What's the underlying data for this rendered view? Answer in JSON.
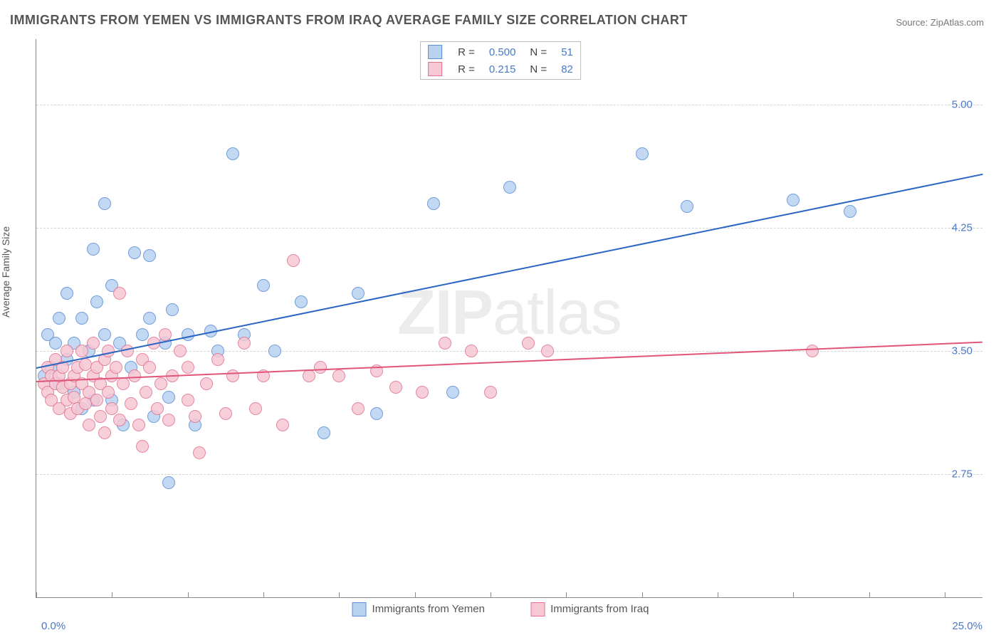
{
  "title": "IMMIGRANTS FROM YEMEN VS IMMIGRANTS FROM IRAQ AVERAGE FAMILY SIZE CORRELATION CHART",
  "source_prefix": "Source: ",
  "source": "ZipAtlas.com",
  "watermark_bold": "ZIP",
  "watermark_thin": "atlas",
  "chart": {
    "type": "scatter",
    "ylabel": "Average Family Size",
    "background_color": "#ffffff",
    "grid_color": "#d5d5d5",
    "axis_color": "#888888",
    "ytick_label_color": "#4a7ac7",
    "xlim": [
      0.0,
      25.0
    ],
    "ylim": [
      2.0,
      5.4
    ],
    "yticks": [
      2.75,
      3.5,
      4.25,
      5.0
    ],
    "xticks": [
      0.0,
      2.0,
      4.0,
      6.0,
      8.0,
      10.0,
      12.0,
      14.0,
      16.0,
      18.0,
      20.0,
      22.0,
      24.0
    ],
    "xtick_labels_shown": {
      "left": "0.0%",
      "right": "25.0%"
    },
    "point_radius": 9,
    "series": [
      {
        "id": "yemen",
        "label": "Immigrants from Yemen",
        "color_fill": "#b9d2f0",
        "color_stroke": "#5a8dd6",
        "trend_color": "#2b66c4",
        "trend_start": [
          0.0,
          3.4
        ],
        "trend_end": [
          25.0,
          4.58
        ],
        "legend_R": "0.500",
        "legend_N": "51",
        "points": [
          [
            0.2,
            3.35
          ],
          [
            0.3,
            3.6
          ],
          [
            0.4,
            3.4
          ],
          [
            0.5,
            3.55
          ],
          [
            0.6,
            3.3
          ],
          [
            0.6,
            3.7
          ],
          [
            0.8,
            3.45
          ],
          [
            0.8,
            3.85
          ],
          [
            1.0,
            3.25
          ],
          [
            1.0,
            3.55
          ],
          [
            1.2,
            3.15
          ],
          [
            1.2,
            3.7
          ],
          [
            1.4,
            3.5
          ],
          [
            1.5,
            4.12
          ],
          [
            1.5,
            3.2
          ],
          [
            1.6,
            3.8
          ],
          [
            1.8,
            3.6
          ],
          [
            1.8,
            4.4
          ],
          [
            2.0,
            3.9
          ],
          [
            2.0,
            3.2
          ],
          [
            2.2,
            3.55
          ],
          [
            2.3,
            3.05
          ],
          [
            2.5,
            3.4
          ],
          [
            2.6,
            4.1
          ],
          [
            2.8,
            3.6
          ],
          [
            3.0,
            4.08
          ],
          [
            3.0,
            3.7
          ],
          [
            3.1,
            3.1
          ],
          [
            3.4,
            3.55
          ],
          [
            3.5,
            3.22
          ],
          [
            3.5,
            2.7
          ],
          [
            3.6,
            3.75
          ],
          [
            4.0,
            3.6
          ],
          [
            4.2,
            3.05
          ],
          [
            4.6,
            3.62
          ],
          [
            4.8,
            3.5
          ],
          [
            5.2,
            4.7
          ],
          [
            5.5,
            3.6
          ],
          [
            6.0,
            3.9
          ],
          [
            6.3,
            3.5
          ],
          [
            7.0,
            3.8
          ],
          [
            7.6,
            3.0
          ],
          [
            8.5,
            3.85
          ],
          [
            9.0,
            3.12
          ],
          [
            10.5,
            4.4
          ],
          [
            11.0,
            3.25
          ],
          [
            12.5,
            4.5
          ],
          [
            16.0,
            4.7
          ],
          [
            17.2,
            4.38
          ],
          [
            20.0,
            4.42
          ],
          [
            21.5,
            4.35
          ]
        ]
      },
      {
        "id": "iraq",
        "label": "Immigrants from Iraq",
        "color_fill": "#f6c7d4",
        "color_stroke": "#e2738f",
        "trend_color": "#e05578",
        "trend_start": [
          0.0,
          3.32
        ],
        "trend_end": [
          25.0,
          3.56
        ],
        "legend_R": "0.215",
        "legend_N": "82",
        "points": [
          [
            0.2,
            3.3
          ],
          [
            0.3,
            3.25
          ],
          [
            0.3,
            3.4
          ],
          [
            0.4,
            3.35
          ],
          [
            0.4,
            3.2
          ],
          [
            0.5,
            3.3
          ],
          [
            0.5,
            3.45
          ],
          [
            0.6,
            3.15
          ],
          [
            0.6,
            3.35
          ],
          [
            0.7,
            3.28
          ],
          [
            0.7,
            3.4
          ],
          [
            0.8,
            3.2
          ],
          [
            0.8,
            3.5
          ],
          [
            0.9,
            3.3
          ],
          [
            0.9,
            3.12
          ],
          [
            1.0,
            3.35
          ],
          [
            1.0,
            3.22
          ],
          [
            1.1,
            3.4
          ],
          [
            1.1,
            3.15
          ],
          [
            1.2,
            3.3
          ],
          [
            1.2,
            3.5
          ],
          [
            1.3,
            3.18
          ],
          [
            1.3,
            3.42
          ],
          [
            1.4,
            3.25
          ],
          [
            1.4,
            3.05
          ],
          [
            1.5,
            3.35
          ],
          [
            1.5,
            3.55
          ],
          [
            1.6,
            3.2
          ],
          [
            1.6,
            3.4
          ],
          [
            1.7,
            3.1
          ],
          [
            1.7,
            3.3
          ],
          [
            1.8,
            3.45
          ],
          [
            1.8,
            3.0
          ],
          [
            1.9,
            3.25
          ],
          [
            1.9,
            3.5
          ],
          [
            2.0,
            3.15
          ],
          [
            2.0,
            3.35
          ],
          [
            2.1,
            3.4
          ],
          [
            2.2,
            3.08
          ],
          [
            2.2,
            3.85
          ],
          [
            2.3,
            3.3
          ],
          [
            2.4,
            3.5
          ],
          [
            2.5,
            3.18
          ],
          [
            2.6,
            3.35
          ],
          [
            2.7,
            3.05
          ],
          [
            2.8,
            3.45
          ],
          [
            2.8,
            2.92
          ],
          [
            2.9,
            3.25
          ],
          [
            3.0,
            3.4
          ],
          [
            3.1,
            3.55
          ],
          [
            3.2,
            3.15
          ],
          [
            3.3,
            3.3
          ],
          [
            3.4,
            3.6
          ],
          [
            3.5,
            3.08
          ],
          [
            3.6,
            3.35
          ],
          [
            3.8,
            3.5
          ],
          [
            4.0,
            3.2
          ],
          [
            4.0,
            3.4
          ],
          [
            4.2,
            3.1
          ],
          [
            4.3,
            2.88
          ],
          [
            4.5,
            3.3
          ],
          [
            4.8,
            3.45
          ],
          [
            5.0,
            3.12
          ],
          [
            5.2,
            3.35
          ],
          [
            5.5,
            3.55
          ],
          [
            5.8,
            3.15
          ],
          [
            6.0,
            3.35
          ],
          [
            6.5,
            3.05
          ],
          [
            6.8,
            4.05
          ],
          [
            7.2,
            3.35
          ],
          [
            7.5,
            3.4
          ],
          [
            8.0,
            3.35
          ],
          [
            8.5,
            3.15
          ],
          [
            9.0,
            3.38
          ],
          [
            9.5,
            3.28
          ],
          [
            10.2,
            3.25
          ],
          [
            10.8,
            3.55
          ],
          [
            11.5,
            3.5
          ],
          [
            12.0,
            3.25
          ],
          [
            13.0,
            3.55
          ],
          [
            13.5,
            3.5
          ],
          [
            20.5,
            3.5
          ]
        ]
      }
    ]
  },
  "legend_top": {
    "r_label": "R =",
    "n_label": "N ="
  },
  "ytick_labels": {
    "2.75": "2.75",
    "3.50": "3.50",
    "4.25": "4.25",
    "5.00": "5.00"
  }
}
